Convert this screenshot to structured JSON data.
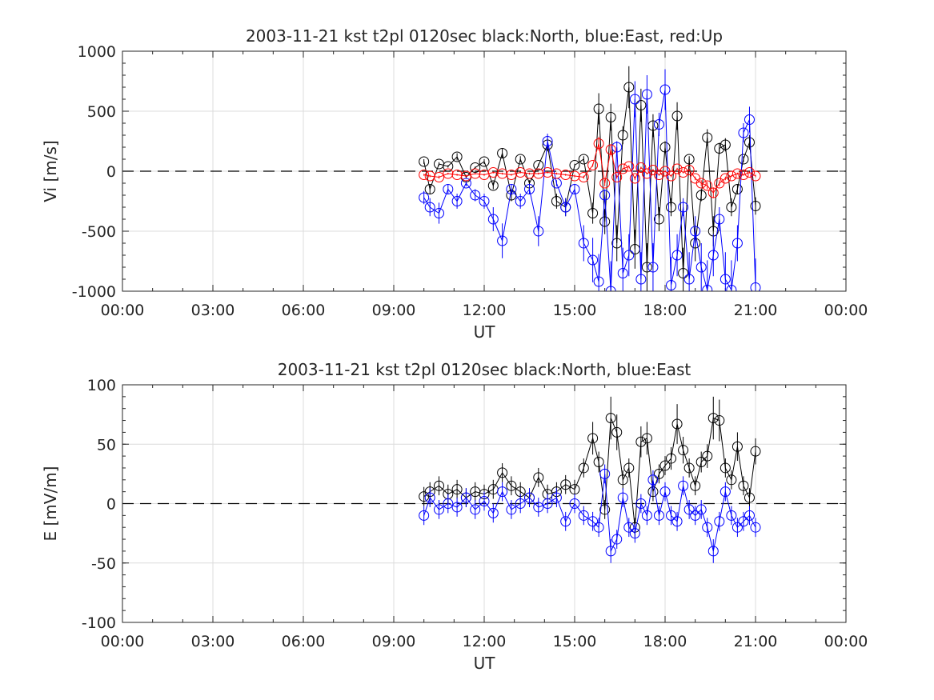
{
  "chart_data": [
    {
      "type": "scatter",
      "title": "2003-11-21 kst t2pl 0120sec black:North, blue:East, red:Up",
      "xlabel": "UT",
      "ylabel": "Vi [m/s]",
      "xlim": [
        0,
        24
      ],
      "ylim": [
        -1000,
        1000
      ],
      "xticks": [
        "00:00",
        "03:00",
        "06:00",
        "09:00",
        "12:00",
        "15:00",
        "18:00",
        "21:00",
        "00:00"
      ],
      "yticks": [
        "1000",
        "500",
        "0",
        "-500",
        "-1000"
      ],
      "grid": true,
      "zero_line": "dashed",
      "series": [
        {
          "color": "#000000",
          "x": [
            10.0,
            10.2,
            10.5,
            10.8,
            11.1,
            11.4,
            11.7,
            12.0,
            12.3,
            12.6,
            12.9,
            13.2,
            13.5,
            13.8,
            14.1,
            14.4,
            14.7,
            15.0,
            15.3,
            15.6,
            15.8,
            16.0,
            16.2,
            16.4,
            16.6,
            16.8,
            17.0,
            17.2,
            17.4,
            17.6,
            17.8,
            18.0,
            18.2,
            18.4,
            18.6,
            18.8,
            19.0,
            19.2,
            19.4,
            19.6,
            19.8,
            20.0,
            20.2,
            20.4,
            20.6,
            20.8,
            21.0
          ],
          "y": [
            80,
            -150,
            60,
            40,
            120,
            -50,
            30,
            80,
            -120,
            150,
            -200,
            100,
            -100,
            50,
            220,
            -250,
            -300,
            50,
            100,
            -350,
            520,
            -420,
            450,
            -600,
            300,
            700,
            -650,
            550,
            -800,
            380,
            -400,
            200,
            -300,
            460,
            -850,
            100,
            -600,
            -200,
            280,
            -500,
            190,
            220,
            -300,
            -150,
            100,
            240,
            -290
          ]
        },
        {
          "color": "#0000ff",
          "x": [
            10.0,
            10.2,
            10.5,
            10.8,
            11.1,
            11.4,
            11.7,
            12.0,
            12.3,
            12.6,
            12.9,
            13.2,
            13.5,
            13.8,
            14.1,
            14.4,
            14.7,
            15.0,
            15.3,
            15.6,
            15.8,
            16.0,
            16.2,
            16.4,
            16.6,
            16.8,
            17.0,
            17.2,
            17.4,
            17.6,
            17.8,
            18.0,
            18.2,
            18.4,
            18.6,
            18.8,
            19.0,
            19.2,
            19.4,
            19.6,
            19.8,
            20.0,
            20.2,
            20.4,
            20.6,
            20.8,
            21.0
          ],
          "y": [
            -220,
            -300,
            -350,
            -150,
            -250,
            -100,
            -200,
            -250,
            -400,
            -580,
            -150,
            -250,
            -150,
            -500,
            250,
            -100,
            -300,
            -150,
            -600,
            -740,
            -920,
            -200,
            -1000,
            200,
            -850,
            -700,
            600,
            -900,
            640,
            -800,
            390,
            680,
            -950,
            -700,
            -300,
            -900,
            -500,
            -800,
            -990,
            -700,
            -400,
            -900,
            -990,
            -600,
            320,
            430,
            -970
          ]
        },
        {
          "color": "#ff0000",
          "x": [
            10.0,
            10.2,
            10.5,
            10.8,
            11.1,
            11.4,
            11.7,
            12.0,
            12.3,
            12.6,
            12.9,
            13.2,
            13.5,
            13.8,
            14.1,
            14.4,
            14.7,
            15.0,
            15.3,
            15.6,
            15.8,
            16.0,
            16.2,
            16.4,
            16.6,
            16.8,
            17.0,
            17.2,
            17.4,
            17.6,
            17.8,
            18.0,
            18.2,
            18.4,
            18.6,
            18.8,
            19.0,
            19.2,
            19.4,
            19.6,
            19.8,
            20.0,
            20.2,
            20.4,
            20.6,
            20.8,
            21.0
          ],
          "y": [
            -30,
            -40,
            -50,
            -20,
            -30,
            -40,
            -20,
            -30,
            -10,
            -20,
            -30,
            -10,
            -20,
            -20,
            -10,
            -20,
            -30,
            -40,
            -50,
            50,
            230,
            -100,
            180,
            -50,
            20,
            40,
            -60,
            30,
            -20,
            10,
            -30,
            0,
            -40,
            20,
            -10,
            10,
            -60,
            -100,
            -120,
            -180,
            -100,
            -60,
            -40,
            -20,
            -30,
            -10,
            -40
          ]
        }
      ]
    },
    {
      "type": "scatter",
      "title": "2003-11-21 kst t2pl 0120sec black:North, blue:East",
      "xlabel": "UT",
      "ylabel": "E [mV/m]",
      "xlim": [
        0,
        24
      ],
      "ylim": [
        -100,
        100
      ],
      "xticks": [
        "00:00",
        "03:00",
        "06:00",
        "09:00",
        "12:00",
        "15:00",
        "18:00",
        "21:00",
        "00:00"
      ],
      "yticks": [
        "100",
        "50",
        "0",
        "-50",
        "-100"
      ],
      "grid": true,
      "zero_line": "dashed",
      "series": [
        {
          "color": "#000000",
          "x": [
            10.0,
            10.2,
            10.5,
            10.8,
            11.1,
            11.4,
            11.7,
            12.0,
            12.3,
            12.6,
            12.9,
            13.2,
            13.5,
            13.8,
            14.1,
            14.4,
            14.7,
            15.0,
            15.3,
            15.6,
            15.8,
            16.0,
            16.2,
            16.4,
            16.6,
            16.8,
            17.0,
            17.2,
            17.4,
            17.6,
            17.8,
            18.0,
            18.2,
            18.4,
            18.6,
            18.8,
            19.0,
            19.2,
            19.4,
            19.6,
            19.8,
            20.0,
            20.2,
            20.4,
            20.6,
            20.8,
            21.0
          ],
          "y": [
            6,
            10,
            15,
            8,
            12,
            5,
            10,
            8,
            12,
            26,
            15,
            10,
            5,
            22,
            8,
            10,
            16,
            12,
            30,
            55,
            35,
            -5,
            72,
            60,
            20,
            30,
            -20,
            52,
            55,
            10,
            25,
            32,
            38,
            67,
            45,
            30,
            15,
            35,
            40,
            72,
            70,
            30,
            20,
            48,
            15,
            5,
            44
          ]
        },
        {
          "color": "#0000ff",
          "x": [
            10.0,
            10.2,
            10.5,
            10.8,
            11.1,
            11.4,
            11.7,
            12.0,
            12.3,
            12.6,
            12.9,
            13.2,
            13.5,
            13.8,
            14.1,
            14.4,
            14.7,
            15.0,
            15.3,
            15.6,
            15.8,
            16.0,
            16.2,
            16.4,
            16.6,
            16.8,
            17.0,
            17.2,
            17.4,
            17.6,
            17.8,
            18.0,
            18.2,
            18.4,
            18.6,
            18.8,
            19.0,
            19.2,
            19.4,
            19.6,
            19.8,
            20.0,
            20.2,
            20.4,
            20.6,
            20.8,
            21.0
          ],
          "y": [
            -10,
            5,
            -5,
            0,
            -3,
            5,
            -5,
            2,
            -8,
            10,
            -5,
            0,
            5,
            -3,
            0,
            5,
            -15,
            0,
            -10,
            -15,
            -20,
            25,
            -40,
            -30,
            5,
            -20,
            -25,
            0,
            -10,
            20,
            -10,
            10,
            -10,
            -15,
            15,
            -5,
            -10,
            -5,
            -20,
            -40,
            -15,
            10,
            -10,
            -20,
            -15,
            -10,
            -20
          ]
        }
      ]
    }
  ]
}
